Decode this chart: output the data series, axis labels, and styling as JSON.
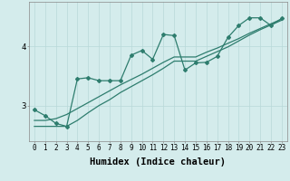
{
  "title": "",
  "xlabel": "Humidex (Indice chaleur)",
  "bg_color": "#d4ecec",
  "line_color": "#2e7d6e",
  "grid_color": "#b8d8d8",
  "line1_x": [
    0,
    1,
    2,
    3,
    4,
    5,
    6,
    7,
    8,
    9,
    10,
    11,
    12,
    13,
    14,
    15,
    16,
    17,
    18,
    19,
    20,
    21,
    22,
    23
  ],
  "line1_y": [
    2.93,
    2.83,
    2.7,
    2.65,
    3.45,
    3.47,
    3.42,
    3.42,
    3.42,
    3.85,
    3.93,
    3.78,
    4.2,
    4.18,
    3.6,
    3.72,
    3.73,
    3.83,
    4.15,
    4.35,
    4.48,
    4.48,
    4.35,
    4.47
  ],
  "line2_x": [
    0,
    1,
    2,
    3,
    4,
    5,
    6,
    7,
    8,
    9,
    10,
    11,
    12,
    13,
    14,
    15,
    16,
    17,
    18,
    19,
    20,
    21,
    22,
    23
  ],
  "line2_y": [
    2.75,
    2.75,
    2.78,
    2.85,
    2.95,
    3.05,
    3.15,
    3.25,
    3.35,
    3.44,
    3.53,
    3.63,
    3.73,
    3.82,
    3.82,
    3.82,
    3.9,
    3.97,
    4.05,
    4.13,
    4.22,
    4.3,
    4.38,
    4.46
  ],
  "line3_x": [
    0,
    1,
    2,
    3,
    4,
    5,
    6,
    7,
    8,
    9,
    10,
    11,
    12,
    13,
    14,
    15,
    16,
    17,
    18,
    19,
    20,
    21,
    22,
    23
  ],
  "line3_y": [
    2.65,
    2.65,
    2.65,
    2.65,
    2.75,
    2.88,
    3.0,
    3.1,
    3.22,
    3.32,
    3.42,
    3.52,
    3.63,
    3.75,
    3.75,
    3.75,
    3.83,
    3.91,
    3.99,
    4.09,
    4.19,
    4.28,
    4.36,
    4.44
  ],
  "xlim": [
    -0.5,
    23.5
  ],
  "ylim": [
    2.4,
    4.75
  ],
  "ytick_vals": [
    3.0,
    4.0
  ],
  "ytick_labels": [
    "3",
    "4"
  ],
  "xtick_labels": [
    "0",
    "1",
    "2",
    "3",
    "4",
    "5",
    "6",
    "7",
    "8",
    "9",
    "10",
    "11",
    "12",
    "13",
    "14",
    "15",
    "16",
    "17",
    "18",
    "19",
    "20",
    "21",
    "22",
    "23"
  ],
  "tick_fontsize": 5.5,
  "xlabel_fontsize": 7.5
}
